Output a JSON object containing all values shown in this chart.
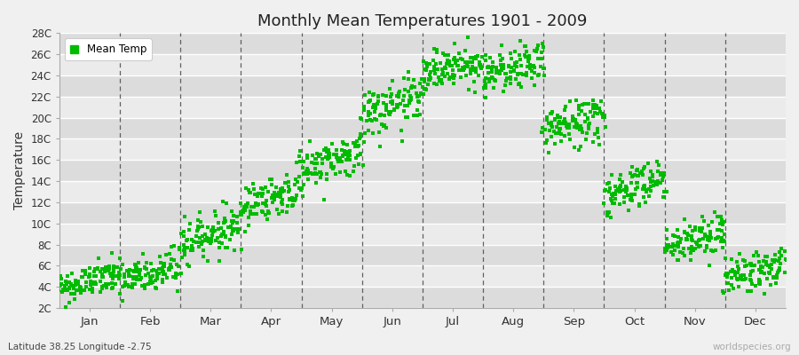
{
  "title": "Monthly Mean Temperatures 1901 - 2009",
  "ylabel": "Temperature",
  "xlabel_subtitle": "Latitude 38.25 Longitude -2.75",
  "watermark": "worldspecies.org",
  "legend_label": "Mean Temp",
  "dot_color": "#00bb00",
  "dot_size": 5,
  "bg_color": "#f0f0f0",
  "plot_bg_light": "#ebebeb",
  "plot_bg_dark": "#dcdcdc",
  "ylim": [
    2,
    28
  ],
  "yticks": [
    2,
    4,
    6,
    8,
    10,
    12,
    14,
    16,
    18,
    20,
    22,
    24,
    26,
    28
  ],
  "ytick_labels": [
    "2C",
    "4C",
    "6C",
    "8C",
    "10C",
    "12C",
    "14C",
    "16C",
    "18C",
    "20C",
    "22C",
    "24C",
    "26C",
    "28C"
  ],
  "months": [
    "Jan",
    "Feb",
    "Mar",
    "Apr",
    "May",
    "Jun",
    "Jul",
    "Aug",
    "Sep",
    "Oct",
    "Nov",
    "Dec"
  ],
  "month_means": [
    4.5,
    5.2,
    9.0,
    12.5,
    16.0,
    21.0,
    24.8,
    24.5,
    19.5,
    13.5,
    8.5,
    5.5
  ],
  "month_trends": [
    0.012,
    0.012,
    0.015,
    0.015,
    0.015,
    0.015,
    0.012,
    0.012,
    0.015,
    0.015,
    0.012,
    0.012
  ],
  "month_stds": [
    0.8,
    1.0,
    1.0,
    1.0,
    1.0,
    1.2,
    1.0,
    1.0,
    1.2,
    1.1,
    1.0,
    0.9
  ],
  "n_years": 109,
  "seed": 42,
  "vline_color": "#606060",
  "hline_color": "#ffffff",
  "vline_lw": 0.9,
  "hline_lw": 1.0
}
